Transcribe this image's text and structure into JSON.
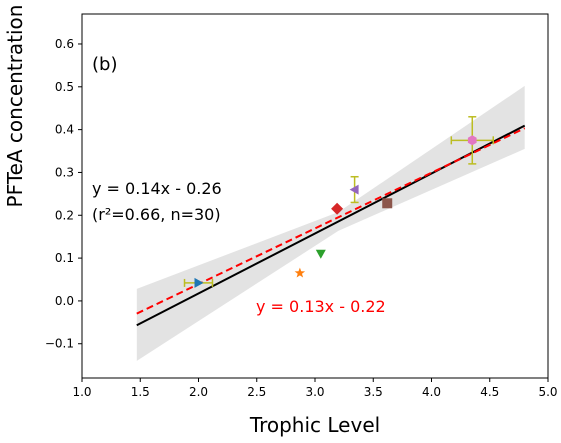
{
  "chart_data": {
    "type": "scatter",
    "panel_label": "(b)",
    "xlabel": "Trophic Level",
    "ylabel": "PFTeA concentration",
    "xlim": [
      1.0,
      5.0
    ],
    "ylim": [
      -0.18,
      0.67
    ],
    "xticks": [
      1.0,
      1.5,
      2.0,
      2.5,
      3.0,
      3.5,
      4.0,
      4.5,
      5.0
    ],
    "xtick_labels": [
      "1.0",
      "1.5",
      "2.0",
      "2.5",
      "3.0",
      "3.5",
      "4.0",
      "4.5",
      "5.0"
    ],
    "yticks": [
      -0.1,
      0.0,
      0.1,
      0.2,
      0.3,
      0.4,
      0.5,
      0.6
    ],
    "ytick_labels": [
      "−0.1",
      "0.0",
      "0.1",
      "0.2",
      "0.3",
      "0.4",
      "0.5",
      "0.6"
    ],
    "grid": false,
    "points": [
      {
        "x": 2.0,
        "y": 0.042,
        "marker": "triangle-right",
        "color": "#1f77b4",
        "xerr": 0.12,
        "yerr": 0.0
      },
      {
        "x": 2.87,
        "y": 0.065,
        "marker": "star",
        "color": "#ff7f0e",
        "xerr": 0.0,
        "yerr": 0.0
      },
      {
        "x": 3.05,
        "y": 0.11,
        "marker": "triangle-down",
        "color": "#2ca02c",
        "xerr": 0.0,
        "yerr": 0.0
      },
      {
        "x": 3.19,
        "y": 0.215,
        "marker": "diamond",
        "color": "#d62728",
        "xerr": 0.0,
        "yerr": 0.0
      },
      {
        "x": 3.34,
        "y": 0.26,
        "marker": "triangle-left",
        "color": "#9467bd",
        "xerr": 0.0,
        "yerr": 0.03
      },
      {
        "x": 3.62,
        "y": 0.228,
        "marker": "square",
        "color": "#8c564b",
        "xerr": 0.0,
        "yerr": 0.0
      },
      {
        "x": 4.35,
        "y": 0.375,
        "marker": "hexagon",
        "color": "#e377c2",
        "xerr": 0.18,
        "yerr": 0.055
      }
    ],
    "fits": [
      {
        "label": "y = 0.14x - 0.26",
        "label2": "(r²=0.66, n=30)",
        "slope": 0.14,
        "intercept": -0.2626,
        "x_range": [
          1.47,
          4.8
        ],
        "color": "#000000",
        "dash": "solid"
      },
      {
        "label": "y = 0.13x - 0.22",
        "slope": 0.13,
        "intercept": -0.2207,
        "x_range": [
          1.47,
          4.8
        ],
        "color": "#ff0000",
        "dash": "dashed"
      }
    ],
    "confidence_band": {
      "x_range": [
        1.47,
        4.8
      ],
      "lower_at_start": -0.14,
      "upper_at_start": 0.028,
      "lower_at_end": 0.355,
      "upper_at_end": 0.502,
      "center_x": 3.2,
      "half_width_at_center": 0.022,
      "color": "#d9d9d9"
    },
    "errorbar_color": "#bcbd22"
  }
}
